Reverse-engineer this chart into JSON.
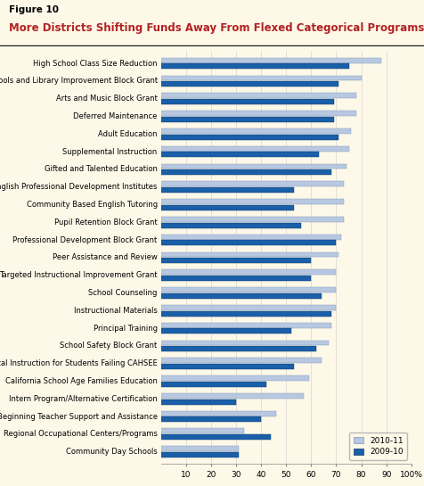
{
  "title_label": "Figure 10",
  "title": "More Districts Shifting Funds Away From Flexed Categorical Programs",
  "categories": [
    "High School Class Size Reduction",
    "Schools and Library Improvement Block Grant",
    "Arts and Music Block Grant",
    "Deferred Maintenance",
    "Adult Education",
    "Supplemental Instruction",
    "Gifted and Talented Education",
    "Math/English Professional Development Institutes",
    "Community Based English Tutoring",
    "Pupil Retention Block Grant",
    "Professional Development Block Grant",
    "Peer Assistance and Review",
    "Targeted Instructional Improvement Grant",
    "School Counseling",
    "Instructional Materials",
    "Principal Training",
    "School Safety Block Grant",
    "Supplemental Instruction for Students Failing CAHSEE",
    "California School Age Families Education",
    "Intern Program/Alternative Certification",
    "Beginning Teacher Support and Assistance",
    "Regional Occupational Centers/Programs",
    "Community Day Schools"
  ],
  "values_2010_11": [
    88,
    80,
    78,
    78,
    76,
    75,
    74,
    73,
    73,
    73,
    72,
    71,
    70,
    70,
    70,
    68,
    67,
    64,
    59,
    57,
    46,
    33,
    31
  ],
  "values_2009_10": [
    75,
    71,
    69,
    69,
    71,
    63,
    68,
    53,
    53,
    56,
    70,
    60,
    60,
    64,
    68,
    52,
    62,
    53,
    42,
    30,
    40,
    44,
    31
  ],
  "color_2010_11": "#b8c8e0",
  "color_2009_10": "#1a5fa8",
  "header_bg": "#f5f0e0",
  "chart_bg": "#fdf8e8",
  "title_label_fontsize": 7.5,
  "title_fontsize": 8.5,
  "label_fontsize": 6.0,
  "tick_fontsize": 6.5,
  "xlim": [
    0,
    100
  ],
  "xticks": [
    10,
    20,
    30,
    40,
    50,
    60,
    70,
    80,
    90,
    100
  ],
  "xticklabels": [
    "10",
    "20",
    "30",
    "40",
    "50",
    "60",
    "70",
    "80",
    "90",
    "100%"
  ],
  "legend_labels": [
    "2010-11",
    "2009-10"
  ]
}
